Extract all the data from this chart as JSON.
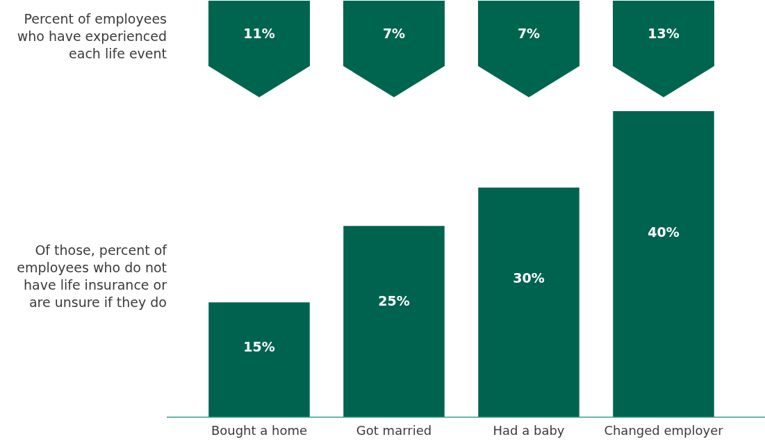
{
  "chart_data": [
    {
      "type": "other",
      "ylabel": "Percent of employees who have experienced each life event",
      "values": [
        11,
        7,
        7,
        13
      ],
      "value_labels": [
        "11%",
        "7%",
        "7%",
        "13%"
      ],
      "color": "#00654f"
    },
    {
      "type": "bar",
      "ylabel": "Of those, percent of employees who do not have life insurance or are unsure if they do",
      "categories": [
        "Bought a home",
        "Got married",
        "Had a baby",
        "Changed employer"
      ],
      "values": [
        15,
        25,
        30,
        40
      ],
      "value_labels": [
        "15%",
        "25%",
        "30%",
        "40%"
      ],
      "color": "#006350",
      "grid": false,
      "legend": false
    }
  ]
}
